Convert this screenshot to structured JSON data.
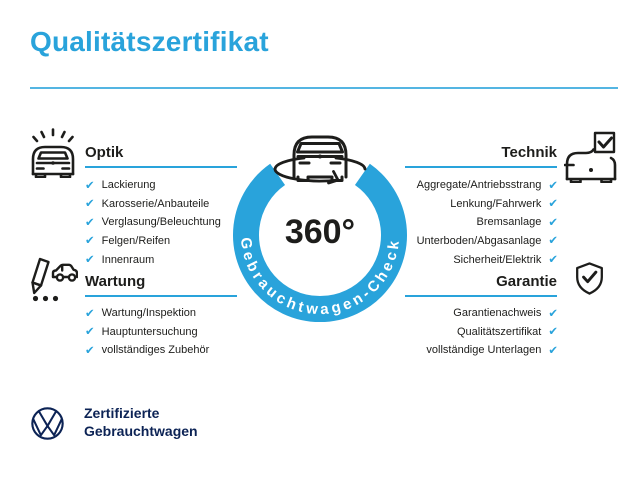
{
  "title": "Qualitätszertifikat",
  "colors": {
    "accent": "#29A3DB",
    "ink": "#1D1D1B",
    "navy": "#0C2355"
  },
  "check_glyph": "✔",
  "badge": {
    "degrees": "360°",
    "ring_text": "Gebrauchtwagen-Check",
    "icon": "car-360-rotation-icon"
  },
  "sections": [
    {
      "label": "Optik",
      "icon": "car-shine-icon",
      "items": [
        "Lackierung",
        "Karosserie/Anbauteile",
        "Verglasung/Beleuchtung",
        "Felgen/Reifen",
        "Innenraum"
      ]
    },
    {
      "label": "Technik",
      "icon": "car-checkbox-icon",
      "items": [
        "Aggregate/Antriebsstrang",
        "Lenkung/Fahrwerk",
        "Bremsanlage",
        "Unterboden/Abgasanlage",
        "Sicherheit/Elektrik"
      ]
    },
    {
      "label": "Wartung",
      "icon": "pen-checklist-car-icon",
      "items": [
        "Wartung/Inspektion",
        "Hauptuntersuchung",
        "vollständiges Zubehör"
      ]
    },
    {
      "label": "Garantie",
      "icon": "shield-check-icon",
      "items": [
        "Garantienachweis",
        "Qualitätszertifikat",
        "vollständige Unterlagen"
      ]
    }
  ],
  "footer": {
    "logo": "vw-logo",
    "line1": "Zertifizierte",
    "line2": "Gebrauchtwagen"
  }
}
